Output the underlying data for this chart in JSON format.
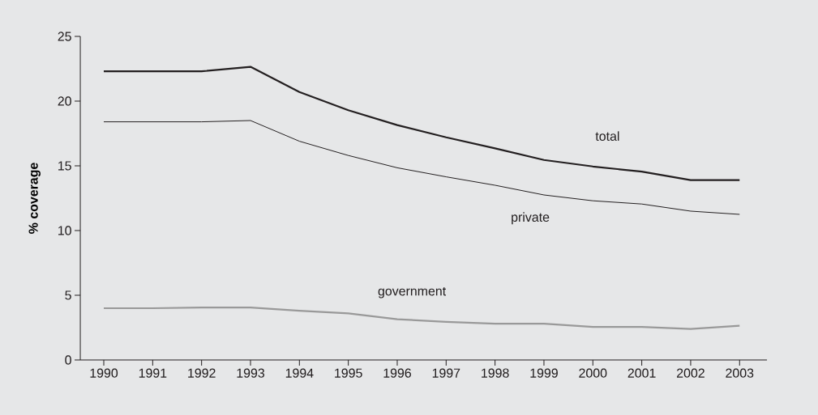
{
  "chart_data": {
    "type": "line",
    "ylabel": "% coverage",
    "categories": [
      "1990",
      "1991",
      "1992",
      "1993",
      "1994",
      "1995",
      "1996",
      "1997",
      "1998",
      "1999",
      "2000",
      "2001",
      "2002",
      "2003"
    ],
    "series": [
      {
        "name": "total",
        "color": "#231f20",
        "values": [
          22.3,
          22.3,
          22.3,
          22.65,
          20.7,
          19.3,
          18.15,
          17.2,
          16.35,
          15.45,
          14.95,
          14.55,
          13.9,
          13.9
        ]
      },
      {
        "name": "private",
        "color": "#231f20",
        "values": [
          18.4,
          18.4,
          18.4,
          18.5,
          16.9,
          15.8,
          14.85,
          14.15,
          13.5,
          12.75,
          12.3,
          12.05,
          11.5,
          11.25
        ]
      },
      {
        "name": "government",
        "color": "#999999",
        "values": [
          4.0,
          4.0,
          4.05,
          4.05,
          3.8,
          3.6,
          3.15,
          2.95,
          2.8,
          2.8,
          2.55,
          2.55,
          2.4,
          2.65
        ]
      }
    ],
    "ylim": [
      0,
      25
    ],
    "yticks": [
      0,
      5,
      10,
      15,
      20,
      25
    ],
    "grid": false,
    "marker": "none",
    "line_style": "solid"
  }
}
